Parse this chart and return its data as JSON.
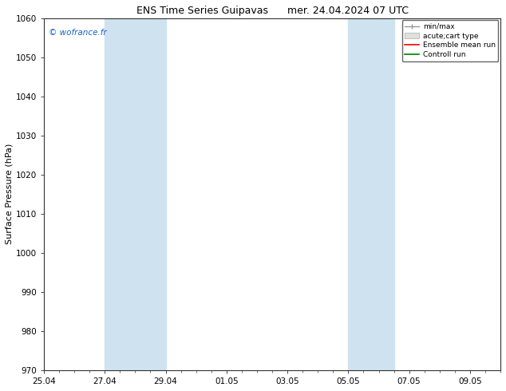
{
  "title_left": "ENS Time Series Guipavas",
  "title_right": "mer. 24.04.2024 07 UTC",
  "ylabel": "Surface Pressure (hPa)",
  "ylim": [
    970,
    1060
  ],
  "yticks": [
    970,
    980,
    990,
    1000,
    1010,
    1020,
    1030,
    1040,
    1050,
    1060
  ],
  "xtick_labels": [
    "25.04",
    "27.04",
    "29.04",
    "01.05",
    "03.05",
    "05.05",
    "07.05",
    "09.05"
  ],
  "xtick_positions": [
    0,
    2,
    4,
    6,
    8,
    10,
    12,
    14
  ],
  "xlim": [
    0,
    15
  ],
  "shaded_bands": [
    {
      "x_start": 2,
      "x_end": 4
    },
    {
      "x_start": 10,
      "x_end": 11.5
    }
  ],
  "shaded_color": "#cfe2f0",
  "background_color": "#ffffff",
  "watermark": "© wofrance.fr",
  "watermark_color": "#1565c0",
  "title_fontsize": 9,
  "axis_fontsize": 8,
  "tick_fontsize": 7.5
}
